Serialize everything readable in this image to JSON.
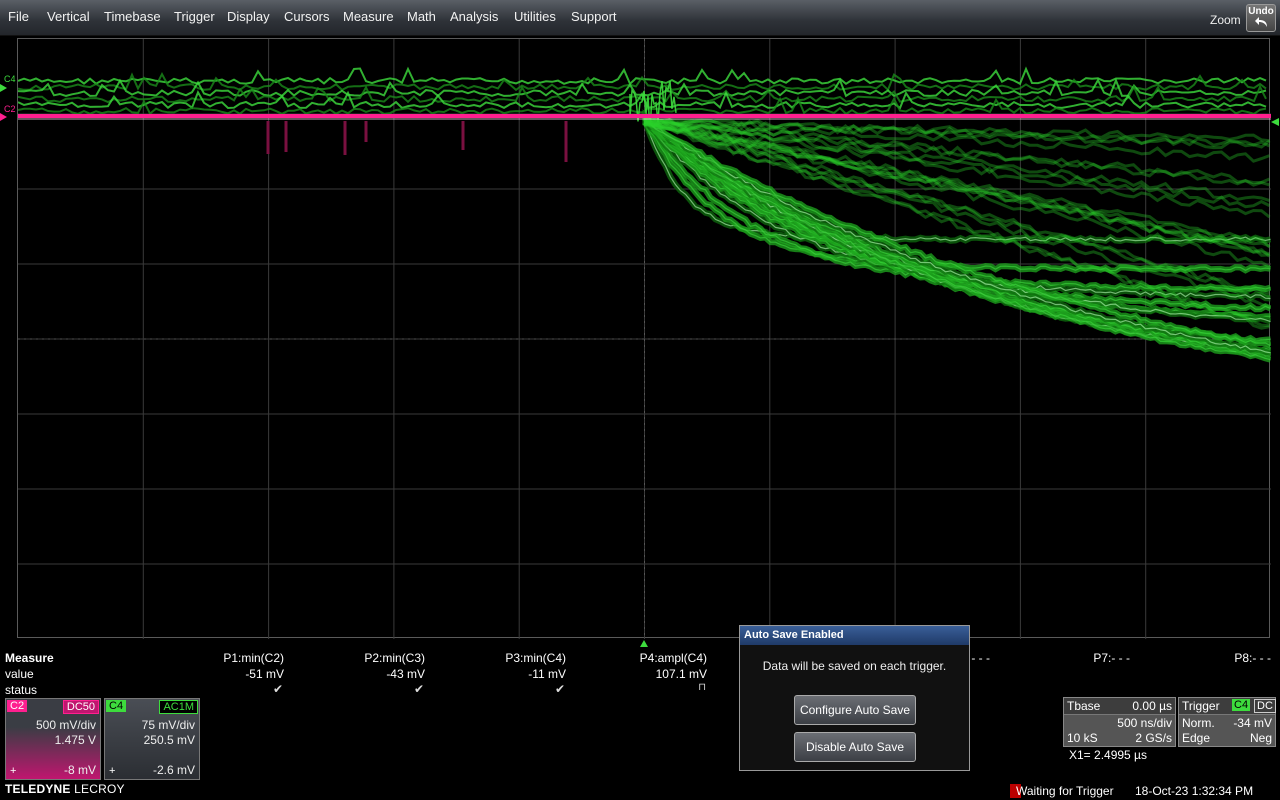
{
  "menu": {
    "items": [
      "File",
      "Vertical",
      "Timebase",
      "Trigger",
      "Display",
      "Cursors",
      "Measure",
      "Math",
      "Analysis",
      "Utilities",
      "Support"
    ],
    "zoom_label": "Zoom",
    "undo_label": "Undo"
  },
  "channels_on_grid": {
    "c4_label": "C4",
    "c2_label": "C2"
  },
  "colors": {
    "c2": "#ff1f8f",
    "c4": "#3ddc3d",
    "grid": "#3a3a3a",
    "dialog_title": "#2a4b80"
  },
  "measure": {
    "title": "Measure",
    "row_value": "value",
    "row_status": "status",
    "params": [
      {
        "name": "P1:min(C2)",
        "value": "-51 mV",
        "status": "✔"
      },
      {
        "name": "P2:min(C3)",
        "value": "-43 mV",
        "status": "✔"
      },
      {
        "name": "P3:min(C4)",
        "value": "-11 mV",
        "status": "✔"
      },
      {
        "name": "P4:ampl(C4)",
        "value": "107.1 mV",
        "status": "⊓"
      },
      {
        "name": "P7:- - -",
        "value": "",
        "status": ""
      },
      {
        "name": "P8:- - -",
        "value": "",
        "status": ""
      }
    ],
    "p6_fragment": "- - -"
  },
  "c2_box": {
    "tag": "C2",
    "coupling": "DC50",
    "vdiv": "500 mV/div",
    "offset_v": "1.475 V",
    "pos_icon": "+",
    "reading": "-8 mV"
  },
  "c4_box": {
    "tag": "C4",
    "coupling": "AC1M",
    "vdiv": "75 mV/div",
    "offset_v": "250.5 mV",
    "pos_icon": "+",
    "reading": "-2.6 mV"
  },
  "dialog": {
    "title": "Auto Save Enabled",
    "message": "Data will be saved on each trigger.",
    "configure_label": "Configure Auto Save",
    "disable_label": "Disable Auto Save"
  },
  "timebase": {
    "label": "Tbase",
    "delay": "0.00 µs",
    "tdiv": "500 ns/div",
    "samples": "10 kS",
    "rate": "2 GS/s"
  },
  "trigger": {
    "label": "Trigger",
    "source": "C4",
    "coupling": "DC",
    "mode": "Norm.",
    "level": "-34 mV",
    "type": "Edge",
    "slope": "Neg"
  },
  "cursor": {
    "x1": "X1=  2.4995 µs"
  },
  "brand": {
    "bold": "TELEDYNE",
    "thin": "LECROY"
  },
  "status": {
    "text": "Waiting for Trigger",
    "datetime": "18-Oct-23 1:32:34 PM"
  }
}
